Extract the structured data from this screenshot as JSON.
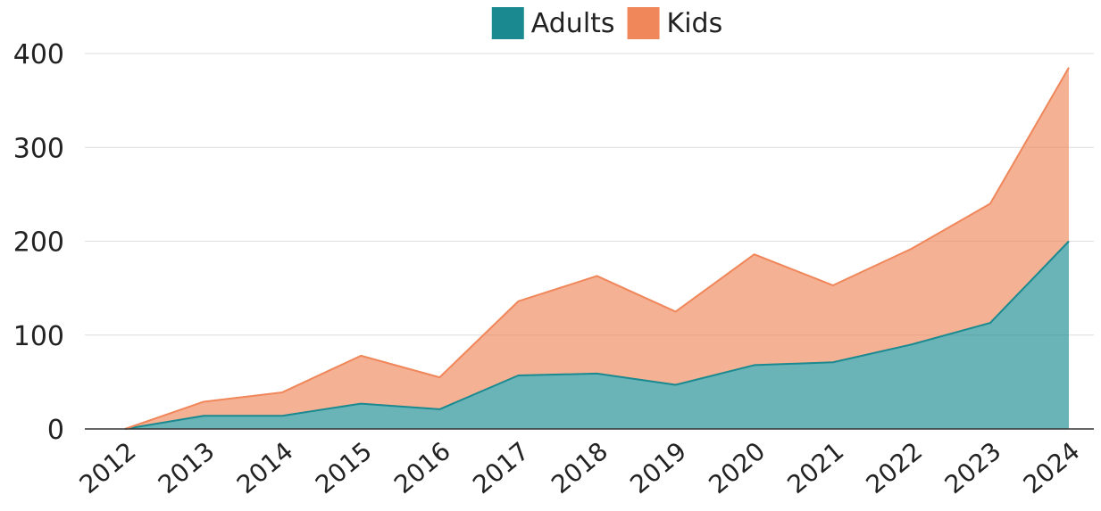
{
  "chart_data": {
    "type": "area",
    "stacked": true,
    "categories": [
      "2012",
      "2013",
      "2014",
      "2015",
      "2016",
      "2017",
      "2018",
      "2019",
      "2020",
      "2021",
      "2022",
      "2023",
      "2024"
    ],
    "series": [
      {
        "name": "Adults",
        "color": "#1a8a90",
        "values": [
          0,
          14,
          14,
          27,
          21,
          57,
          59,
          47,
          68,
          71,
          90,
          113,
          200
        ]
      },
      {
        "name": "Kids",
        "color": "#f0875a",
        "values": [
          0,
          15,
          25,
          51,
          34,
          79,
          104,
          78,
          118,
          82,
          102,
          127,
          185
        ]
      }
    ],
    "ylim": [
      0,
      400
    ],
    "yticks": [
      0,
      100,
      200,
      300,
      400
    ],
    "grid": true,
    "legend_position": "top-center",
    "title": "",
    "xlabel": "",
    "ylabel": ""
  }
}
